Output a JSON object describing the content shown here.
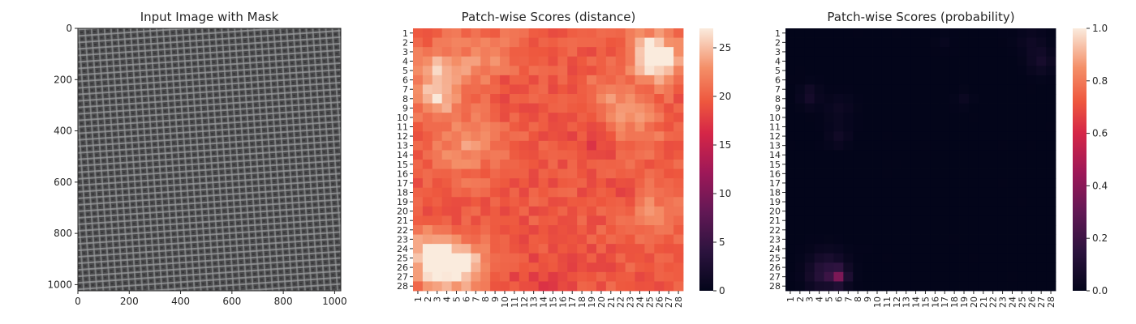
{
  "chart_data": [
    {
      "type": "image",
      "title": "Input Image with Mask",
      "xlabel": "",
      "ylabel": "",
      "x_ticks": [
        "0",
        "200",
        "400",
        "600",
        "800",
        "1000"
      ],
      "y_ticks": [
        "0",
        "200",
        "400",
        "600",
        "800",
        "1000"
      ],
      "xlim": [
        0,
        1024
      ],
      "ylim": [
        1024,
        0
      ],
      "texture_colors": {
        "base": "#4a4a4c",
        "thread": "#9a9c9e",
        "dark": "#2c2c2e"
      }
    },
    {
      "type": "heatmap",
      "title": "Patch-wise Scores (distance)",
      "row_labels": [
        "1",
        "2",
        "3",
        "4",
        "5",
        "6",
        "7",
        "8",
        "9",
        "10",
        "11",
        "12",
        "13",
        "14",
        "15",
        "16",
        "17",
        "18",
        "19",
        "20",
        "21",
        "22",
        "23",
        "24",
        "25",
        "26",
        "27",
        "28"
      ],
      "col_labels": [
        "1",
        "2",
        "3",
        "4",
        "5",
        "6",
        "7",
        "8",
        "9",
        "10",
        "11",
        "12",
        "13",
        "14",
        "15",
        "16",
        "17",
        "18",
        "19",
        "20",
        "21",
        "22",
        "23",
        "24",
        "25",
        "26",
        "27",
        "28"
      ],
      "colorbar": {
        "min": 0,
        "max": 27,
        "ticks": [
          "0",
          "5",
          "10",
          "15",
          "20",
          "25"
        ],
        "tick_values": [
          0,
          5,
          10,
          15,
          20,
          25
        ],
        "colormap": "rocket"
      },
      "baseline_value": 19.5,
      "hotspots": [
        {
          "row": 4,
          "col": 26,
          "value": 26.5,
          "spread": 1.6
        },
        {
          "row": 3,
          "col": 25,
          "value": 25.0,
          "spread": 1.5
        },
        {
          "row": 5,
          "col": 3,
          "value": 24.0,
          "spread": 1.8
        },
        {
          "row": 8,
          "col": 3,
          "value": 24.5,
          "spread": 1.5
        },
        {
          "row": 26,
          "col": 3,
          "value": 26.5,
          "spread": 1.8
        },
        {
          "row": 26,
          "col": 6,
          "value": 25.5,
          "spread": 1.8
        },
        {
          "row": 24,
          "col": 2,
          "value": 24.0,
          "spread": 1.5
        },
        {
          "row": 13,
          "col": 6,
          "value": 23.0,
          "spread": 2.5
        },
        {
          "row": 4,
          "col": 8,
          "value": 22.5,
          "spread": 2.5
        },
        {
          "row": 8,
          "col": 21,
          "value": 22.5,
          "spread": 2.0
        },
        {
          "row": 20,
          "col": 25,
          "value": 22.5,
          "spread": 2.2
        },
        {
          "row": 11,
          "col": 24,
          "value": 22.0,
          "spread": 2.0
        }
      ],
      "coldspots": [
        {
          "row": 7,
          "col": 10,
          "value": 17.5,
          "spread": 1.2
        },
        {
          "row": 13,
          "col": 19,
          "value": 18.0,
          "spread": 1.5
        },
        {
          "row": 18,
          "col": 23,
          "value": 17.5,
          "spread": 1.2
        },
        {
          "row": 28,
          "col": 14,
          "value": 18.0,
          "spread": 2.5
        }
      ]
    },
    {
      "type": "heatmap",
      "title": "Patch-wise Scores (probability)",
      "row_labels": [
        "1",
        "2",
        "3",
        "4",
        "5",
        "6",
        "7",
        "8",
        "9",
        "10",
        "11",
        "12",
        "13",
        "14",
        "15",
        "16",
        "17",
        "18",
        "19",
        "20",
        "21",
        "22",
        "23",
        "24",
        "25",
        "26",
        "27",
        "28"
      ],
      "col_labels": [
        "1",
        "2",
        "3",
        "4",
        "5",
        "6",
        "7",
        "8",
        "9",
        "10",
        "11",
        "12",
        "13",
        "14",
        "15",
        "16",
        "17",
        "18",
        "19",
        "20",
        "21",
        "22",
        "23",
        "24",
        "25",
        "26",
        "27",
        "28"
      ],
      "colorbar": {
        "min": 0.0,
        "max": 1.0,
        "ticks": [
          "0.0",
          "0.2",
          "0.4",
          "0.6",
          "0.8",
          "1.0"
        ],
        "tick_values": [
          0.0,
          0.2,
          0.4,
          0.6,
          0.8,
          1.0
        ],
        "colormap": "rocket"
      },
      "baseline_value": 0.0,
      "hotspots": [
        {
          "row": 27,
          "col": 6,
          "value": 0.3,
          "spread": 0.6
        },
        {
          "row": 26,
          "col": 5,
          "value": 0.1,
          "spread": 1.3
        },
        {
          "row": 27,
          "col": 4,
          "value": 0.07,
          "spread": 1.0
        },
        {
          "row": 4,
          "col": 27,
          "value": 0.07,
          "spread": 0.9
        },
        {
          "row": 2,
          "col": 26,
          "value": 0.04,
          "spread": 1.0
        },
        {
          "row": 8,
          "col": 3,
          "value": 0.06,
          "spread": 0.7
        },
        {
          "row": 12,
          "col": 6,
          "value": 0.05,
          "spread": 0.8
        },
        {
          "row": 9,
          "col": 6,
          "value": 0.04,
          "spread": 1.0
        },
        {
          "row": 8,
          "col": 19,
          "value": 0.03,
          "spread": 0.6
        },
        {
          "row": 2,
          "col": 17,
          "value": 0.02,
          "spread": 0.6
        },
        {
          "row": 7,
          "col": 3,
          "value": 0.03,
          "spread": 0.6
        }
      ],
      "coldspots": []
    }
  ]
}
